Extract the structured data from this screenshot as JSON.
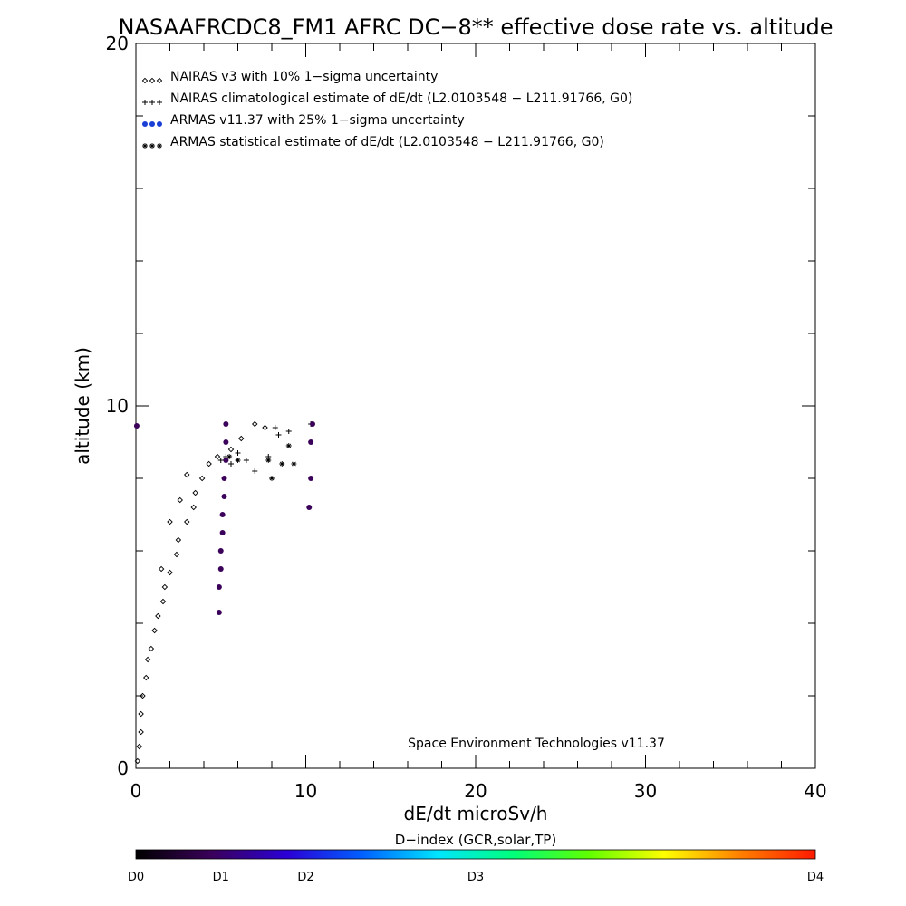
{
  "chart_data": {
    "type": "scatter",
    "title": "NASAAFRCDC8_FM1 AFRC DC−8** effective dose rate vs. altitude",
    "xlabel": "dE/dt microSv/h",
    "ylabel": "altitude (km)",
    "xlim": [
      0,
      40
    ],
    "ylim": [
      0,
      20
    ],
    "xticks": [
      "0",
      "10",
      "20",
      "30",
      "40"
    ],
    "yticks": [
      "0",
      "10",
      "20"
    ],
    "grid": false,
    "legend_placement": "top-left",
    "annotation": "Space Environment Technologies v11.37",
    "colorbar": {
      "title": "D−index (GCR,solar,TP)",
      "labels": [
        "D0",
        "D1",
        "D2",
        "D3",
        "D4"
      ],
      "label_positions": [
        0,
        0.125,
        0.25,
        0.5,
        1.0
      ],
      "colors": [
        "#000000",
        "#3a005a",
        "#2b00d6",
        "#0060ff",
        "#00e5ff",
        "#00ff7a",
        "#60ff00",
        "#ffff00",
        "#ff8000",
        "#ff1a00"
      ]
    },
    "series": [
      {
        "name": "NAIRAS v3 with 10% 1−sigma uncertainty",
        "marker": "diamond",
        "color": "#000000",
        "points": [
          [
            0.1,
            0.2
          ],
          [
            0.2,
            0.6
          ],
          [
            0.3,
            1.0
          ],
          [
            0.3,
            1.5
          ],
          [
            0.4,
            2.0
          ],
          [
            0.6,
            2.5
          ],
          [
            0.7,
            3.0
          ],
          [
            0.9,
            3.3
          ],
          [
            1.1,
            3.8
          ],
          [
            1.3,
            4.2
          ],
          [
            1.6,
            4.6
          ],
          [
            1.7,
            5.0
          ],
          [
            2.0,
            5.4
          ],
          [
            2.4,
            5.9
          ],
          [
            2.5,
            6.3
          ],
          [
            3.0,
            6.8
          ],
          [
            3.4,
            7.2
          ],
          [
            3.5,
            7.6
          ],
          [
            3.9,
            8.0
          ],
          [
            4.3,
            8.4
          ],
          [
            4.8,
            8.6
          ],
          [
            5.6,
            8.8
          ],
          [
            6.2,
            9.1
          ],
          [
            7.0,
            9.5
          ],
          [
            7.6,
            9.4
          ],
          [
            1.5,
            5.5
          ],
          [
            2.0,
            6.8
          ],
          [
            2.6,
            7.4
          ],
          [
            3.0,
            8.1
          ]
        ]
      },
      {
        "name": "NAIRAS climatological estimate of dE/dt (L2.0103548 − L211.91766, G0)",
        "marker": "plus",
        "color": "#000000",
        "points": [
          [
            5.0,
            8.5
          ],
          [
            5.3,
            8.6
          ],
          [
            5.6,
            8.4
          ],
          [
            6.0,
            8.7
          ],
          [
            6.5,
            8.5
          ],
          [
            7.0,
            8.2
          ],
          [
            7.8,
            8.6
          ],
          [
            8.2,
            9.4
          ],
          [
            8.4,
            9.2
          ],
          [
            9.0,
            9.3
          ],
          [
            10.3,
            9.5
          ]
        ]
      },
      {
        "name": "ARMAS v11.37 with 25% 1−sigma uncertainty",
        "marker": "dot",
        "color": "#3a005a",
        "points": [
          [
            0.05,
            9.45
          ],
          [
            4.9,
            4.3
          ],
          [
            4.9,
            5.0
          ],
          [
            5.0,
            5.5
          ],
          [
            5.0,
            6.0
          ],
          [
            5.1,
            6.5
          ],
          [
            5.1,
            7.0
          ],
          [
            5.2,
            7.5
          ],
          [
            5.2,
            8.0
          ],
          [
            5.3,
            8.5
          ],
          [
            5.3,
            9.0
          ],
          [
            5.3,
            9.5
          ],
          [
            10.2,
            7.2
          ],
          [
            10.3,
            8.0
          ],
          [
            10.3,
            9.0
          ],
          [
            10.4,
            9.5
          ]
        ]
      },
      {
        "name": "ARMAS statistical estimate of dE/dt (L2.0103548 − L211.91766, G0)",
        "marker": "asterisk",
        "color": "#000000",
        "points": [
          [
            5.5,
            8.6
          ],
          [
            6.0,
            8.5
          ],
          [
            7.8,
            8.5
          ],
          [
            8.0,
            8.0
          ],
          [
            8.6,
            8.4
          ],
          [
            9.3,
            8.4
          ],
          [
            9.0,
            8.9
          ]
        ]
      }
    ]
  }
}
